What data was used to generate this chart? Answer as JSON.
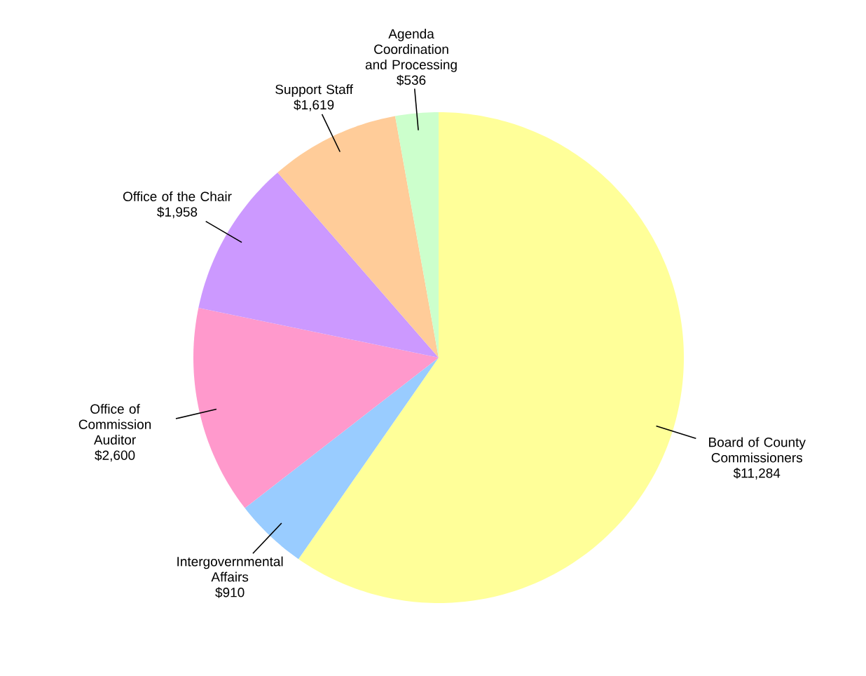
{
  "chart_data": {
    "type": "pie",
    "categories": [
      "Board of County Commissioners",
      "Intergovernmental Affairs",
      "Office of Commission Auditor",
      "Office of the Chair",
      "Support Staff",
      "Agenda Coordination and Processing"
    ],
    "values": [
      11284,
      910,
      2600,
      1958,
      1619,
      536
    ],
    "value_labels": [
      "$11,284",
      "$910",
      "$2,600",
      "$1,958",
      "$1,619",
      "$536"
    ],
    "colors": [
      "#ffff99",
      "#99ccff",
      "#ff99cc",
      "#cc99ff",
      "#ffcc99",
      "#ccffcc"
    ]
  }
}
